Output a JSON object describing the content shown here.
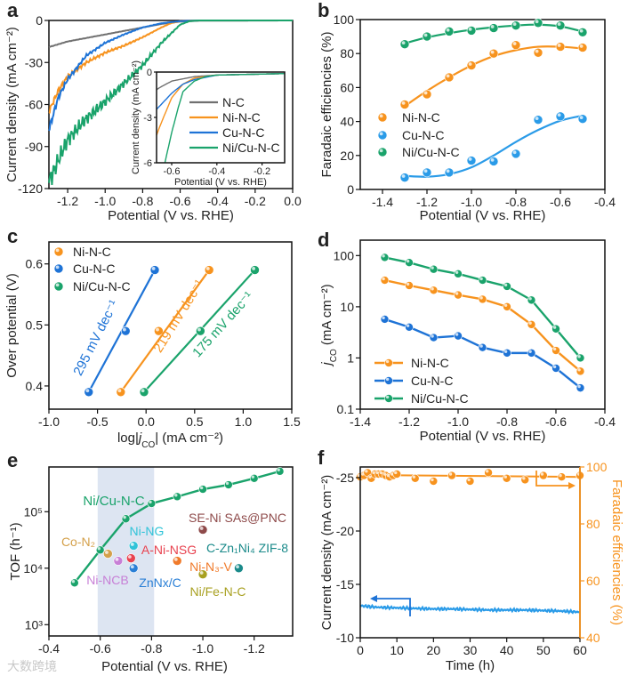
{
  "colors": {
    "nc": "#707070",
    "ni": "#f7931e",
    "cu": "#1e73d6",
    "cu_light": "#2a9be8",
    "nicu": "#1aa36b",
    "band": "#dde5f2",
    "axis": "#111111"
  },
  "watermark": "大数跨境",
  "chart_data": [
    {
      "panel": "a",
      "type": "line",
      "xlabel": "Potential (V vs. RHE)",
      "ylabel": "Current density (mA cm⁻²)",
      "xlim": [
        -1.3,
        0.0
      ],
      "ylim": [
        -120,
        0
      ],
      "xticks": [
        "-1.2",
        "-1.0",
        "-0.8",
        "-0.6",
        "-0.4",
        "-0.2",
        "0.0"
      ],
      "yticks": [
        "-120",
        "-90",
        "-60",
        "-30",
        "0"
      ],
      "series": [
        {
          "name": "N-C",
          "color": "#707070",
          "x": [
            -1.3,
            -1.2,
            -1.0,
            -0.8,
            -0.7,
            -0.6,
            -0.5,
            0.0
          ],
          "y": [
            -19,
            -15,
            -10,
            -5,
            -2.5,
            -0.8,
            -0.2,
            0
          ]
        },
        {
          "name": "Ni-N-C",
          "color": "#f7931e",
          "x": [
            -1.3,
            -1.25,
            -1.2,
            -1.1,
            -1.0,
            -0.9,
            -0.8,
            -0.7,
            -0.65,
            -0.6,
            -0.5,
            0.0
          ],
          "y": [
            -65,
            -50,
            -40,
            -30,
            -23,
            -18,
            -12,
            -5,
            -2,
            -0.5,
            0,
            0
          ]
        },
        {
          "name": "Cu-N-C",
          "color": "#1e73d6",
          "x": [
            -1.3,
            -1.25,
            -1.2,
            -1.1,
            -1.0,
            -0.9,
            -0.8,
            -0.7,
            -0.6,
            -0.5,
            0.0
          ],
          "y": [
            -78,
            -55,
            -42,
            -25,
            -16,
            -10,
            -5,
            -2,
            -0.5,
            0,
            0
          ]
        },
        {
          "name": "Ni/Cu-N-C",
          "color": "#1aa36b",
          "x": [
            -1.3,
            -1.25,
            -1.2,
            -1.1,
            -1.0,
            -0.9,
            -0.8,
            -0.7,
            -0.6,
            -0.55,
            -0.5,
            0.0
          ],
          "y": [
            -115,
            -100,
            -85,
            -70,
            -58,
            -45,
            -32,
            -16,
            -3,
            -0.5,
            0,
            0
          ]
        }
      ],
      "inset": {
        "xlabel": "Potential (V vs. RHE)",
        "ylabel": "Current density (mA cm⁻²)",
        "xlim": [
          -0.667,
          -0.1
        ],
        "ylim": [
          -6,
          0
        ],
        "xticks": [
          "-0.6",
          "-0.4",
          "-0.2"
        ],
        "yticks": [
          "-6",
          "-3",
          "0"
        ],
        "series": [
          {
            "name": "N-C",
            "color": "#707070",
            "x": [
              -0.7,
              -0.65,
              -0.6,
              -0.5,
              -0.4,
              -0.1
            ],
            "y": [
              -1.5,
              -1.0,
              -0.6,
              -0.3,
              -0.2,
              -0.1
            ]
          },
          {
            "name": "Ni-N-C",
            "color": "#f7931e",
            "x": [
              -0.7,
              -0.65,
              -0.6,
              -0.55,
              -0.5,
              -0.4,
              -0.1
            ],
            "y": [
              -5.5,
              -3.5,
              -1.7,
              -0.8,
              -0.4,
              -0.2,
              -0.1
            ]
          },
          {
            "name": "Cu-N-C",
            "color": "#1e73d6",
            "x": [
              -0.7,
              -0.65,
              -0.6,
              -0.55,
              -0.5,
              -0.4,
              -0.1
            ],
            "y": [
              -3.0,
              -2.2,
              -1.4,
              -0.8,
              -0.5,
              -0.2,
              -0.1
            ]
          },
          {
            "name": "Ni/Cu-N-C",
            "color": "#1aa36b",
            "x": [
              -0.63,
              -0.6,
              -0.57,
              -0.55,
              -0.5,
              -0.45,
              -0.4,
              -0.1
            ],
            "y": [
              -6,
              -4,
              -2.3,
              -1.3,
              -0.6,
              -0.3,
              -0.2,
              -0.1
            ]
          }
        ]
      },
      "legend": [
        "N-C",
        "Ni-N-C",
        "Cu-N-C",
        "Ni/Cu-N-C"
      ],
      "legend_position": "inside inset, right"
    },
    {
      "panel": "b",
      "type": "scatter",
      "xlabel": "Potential (V vs. RHE)",
      "ylabel": "Faradaic efficiencies (%)",
      "xlim": [
        -1.5,
        -0.4
      ],
      "ylim": [
        0,
        100
      ],
      "xticks": [
        "-1.4",
        "-1.2",
        "-1.0",
        "-0.8",
        "-0.6",
        "-0.4"
      ],
      "yticks": [
        "0",
        "20",
        "40",
        "60",
        "80",
        "100"
      ],
      "x": [
        -1.3,
        -1.2,
        -1.1,
        -1.0,
        -0.9,
        -0.8,
        -0.7,
        -0.6,
        -0.5
      ],
      "series": [
        {
          "name": "Ni-N-C",
          "color": "#f7931e",
          "values": [
            50,
            56,
            66,
            73,
            80,
            85,
            80.5,
            84,
            83.5
          ],
          "fit": [
            49,
            58,
            66,
            73,
            78.5,
            82,
            84,
            84,
            83
          ]
        },
        {
          "name": "Cu-N-C",
          "color": "#2a9be8",
          "values": [
            7,
            10,
            10,
            17,
            16.5,
            21,
            41,
            43,
            41.5
          ],
          "fit": [
            8,
            7.5,
            9,
            13,
            20,
            28,
            35,
            40.5,
            43.5
          ]
        },
        {
          "name": "Ni/Cu-N-C",
          "color": "#1aa36b",
          "values": [
            85.5,
            90,
            93,
            93.5,
            95,
            96.5,
            98,
            96.5,
            92.5
          ],
          "fit": [
            86,
            89.5,
            92,
            94,
            95.5,
            96.5,
            97,
            96,
            93
          ]
        }
      ],
      "legend_position": "middle-left"
    },
    {
      "panel": "c",
      "type": "scatter",
      "xlabel_parts": [
        "log|",
        "j",
        "CO",
        "| (mA cm⁻²)"
      ],
      "ylabel": "Over potential (V)",
      "xlim": [
        -1.0,
        1.5
      ],
      "ylim": [
        0.362,
        0.636
      ],
      "xticks": [
        "-1.0",
        "-0.5",
        "0.0",
        "0.5",
        "1.0",
        "1.5"
      ],
      "yticks": [
        "0.4",
        "0.5",
        "0.6"
      ],
      "series": [
        {
          "name": "Ni-N-C",
          "color": "#f7931e",
          "x": [
            -0.26,
            0.13,
            0.65
          ],
          "y": [
            0.39,
            0.49,
            0.59
          ],
          "tafel": "219 mV dec⁻¹"
        },
        {
          "name": "Cu-N-C",
          "color": "#1e73d6",
          "x": [
            -0.59,
            -0.21,
            0.09
          ],
          "y": [
            0.39,
            0.49,
            0.59
          ],
          "tafel": "295 mV dec⁻¹"
        },
        {
          "name": "Ni/Cu-N-C",
          "color": "#1aa36b",
          "x": [
            -0.02,
            0.56,
            1.12
          ],
          "y": [
            0.39,
            0.49,
            0.59
          ],
          "tafel": "175 mV dec⁻¹"
        }
      ],
      "legend_position": "top-left"
    },
    {
      "panel": "d",
      "type": "line",
      "yscale": "log",
      "xlabel": "Potential (V vs. RHE)",
      "ylabel_parts": [
        "j",
        "CO",
        " (mA cm⁻²)"
      ],
      "xlim": [
        -1.4,
        -0.4
      ],
      "ylim": [
        0.1,
        200
      ],
      "xticks": [
        "-1.4",
        "-1.2",
        "-1.0",
        "-0.8",
        "-0.6",
        "-0.4"
      ],
      "yticks": [
        "0.1",
        "1",
        "10",
        "100"
      ],
      "x": [
        -1.3,
        -1.2,
        -1.1,
        -1.0,
        -0.9,
        -0.8,
        -0.7,
        -0.6,
        -0.5
      ],
      "series": [
        {
          "name": "Ni-N-C",
          "color": "#f7931e",
          "values": [
            33,
            26,
            21,
            17,
            14,
            10,
            4.5,
            1.4,
            0.55
          ]
        },
        {
          "name": "Cu-N-C",
          "color": "#1e73d6",
          "values": [
            5.7,
            4,
            2.5,
            2.7,
            1.6,
            1.25,
            1.25,
            0.63,
            0.26
          ]
        },
        {
          "name": "Ni/Cu-N-C",
          "color": "#1aa36b",
          "values": [
            92,
            73,
            54,
            44,
            33,
            25,
            13.5,
            3.7,
            1.0
          ]
        }
      ],
      "legend_position": "bottom-left"
    },
    {
      "panel": "e",
      "type": "scatter",
      "yscale": "log",
      "xlabel": "Potential (V vs. RHE)",
      "ylabel": "TOF (h⁻¹)",
      "xlim": [
        -0.4,
        -1.35
      ],
      "ylim": [
        631,
        620000
      ],
      "xticks": [
        "-0.4",
        "-0.6",
        "-0.8",
        "-1.0",
        "-1.2"
      ],
      "yticks": [
        "10³",
        "10⁴",
        "10⁵"
      ],
      "yticks_values": [
        1000,
        10000,
        100000
      ],
      "highlight_band": [
        -0.59,
        -0.81
      ],
      "main_series": {
        "name": "Ni/Cu-N-C",
        "color": "#1aa36b",
        "x": [
          -0.5,
          -0.6,
          -0.7,
          -0.8,
          -0.9,
          -1.0,
          -1.1,
          -1.2,
          -1.3
        ],
        "values": [
          5500,
          21000,
          75000,
          140000,
          185000,
          250000,
          300000,
          390000,
          520000
        ]
      },
      "references": [
        {
          "name": "Co-N₂",
          "x": -0.63,
          "y": 18000,
          "color": "#d4a04a"
        },
        {
          "name": "Ni-NCB",
          "x": -0.67,
          "y": 13500,
          "color": "#c77fd6"
        },
        {
          "name": "A-Ni-NSG",
          "x": -0.72,
          "y": 15000,
          "color": "#e8424f"
        },
        {
          "name": "Ni-NG",
          "x": -0.73,
          "y": 25000,
          "color": "#2fc3d8"
        },
        {
          "name": "ZnNx/C",
          "x": -0.73,
          "y": 10000,
          "color": "#2a7fd6"
        },
        {
          "name": "Ni-N₃-V",
          "x": -0.9,
          "y": 13500,
          "color": "#f07a2a"
        },
        {
          "name": "SE-Ni SAs@PNC",
          "x": -1.0,
          "y": 48000,
          "color": "#8e4a4a"
        },
        {
          "name": "Ni/Fe-N-C",
          "x": -1.0,
          "y": 7800,
          "color": "#a8a020"
        },
        {
          "name": "C-Zn₁Ni₄ ZIF-8",
          "x": -1.14,
          "y": 10000,
          "color": "#1a8a8a"
        }
      ]
    },
    {
      "panel": "f",
      "type": "line",
      "xlabel": "Time (h)",
      "ylabel": "Current density (mA cm⁻²)",
      "ylabel_right": "Faradaic efficiencies (%)",
      "xlim": [
        0,
        60
      ],
      "ylim": [
        -10,
        -26
      ],
      "ylim_right": [
        40,
        100
      ],
      "xticks": [
        "0",
        "10",
        "20",
        "30",
        "40",
        "50",
        "60"
      ],
      "yticks": [
        "-10",
        "-15",
        "-20",
        "-25"
      ],
      "yticks_right": [
        "40",
        "60",
        "80",
        "100"
      ],
      "current": {
        "name": "Current density",
        "color": "#2a9be8",
        "x": [
          0,
          5,
          10,
          15,
          20,
          25,
          30,
          35,
          40,
          45,
          50,
          55,
          60
        ],
        "values": [
          -13.0,
          -12.85,
          -12.8,
          -12.75,
          -12.7,
          -12.7,
          -12.65,
          -12.6,
          -12.6,
          -12.6,
          -12.55,
          -12.5,
          -12.4
        ]
      },
      "fe": {
        "name": "Faradaic efficiency",
        "color": "#f7931e",
        "x": [
          0,
          1,
          2,
          3,
          4,
          5,
          6,
          7,
          8,
          9,
          10,
          15,
          20,
          25,
          30,
          35,
          40,
          45,
          50,
          55,
          60
        ],
        "values": [
          96.5,
          97,
          98,
          96,
          97.5,
          97.5,
          97.5,
          97,
          96.5,
          97,
          97.5,
          96,
          95,
          97,
          95,
          98,
          96,
          95.5,
          97,
          96.5,
          97
        ]
      }
    }
  ]
}
